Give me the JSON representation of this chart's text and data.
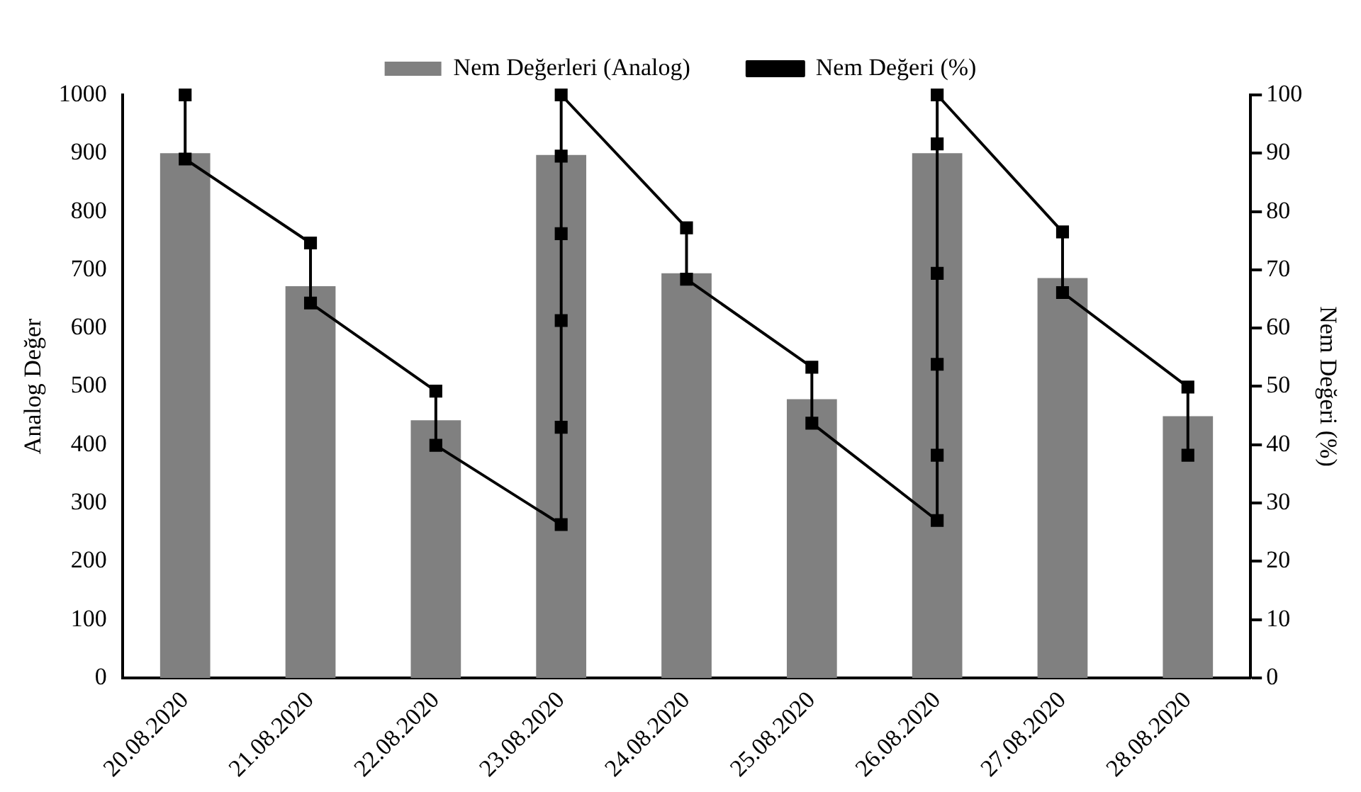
{
  "chart_data": {
    "type": "bar",
    "categories": [
      "20.08.2020",
      "21.08.2020",
      "22.08.2020",
      "23.08.2020",
      "24.08.2020",
      "25.08.2020",
      "26.08.2020",
      "27.08.2020",
      "28.08.2020"
    ],
    "ylabel": "Analog Değer",
    "y2label": "Nem Değeri (%)",
    "series": [
      {
        "name": "Nem Değerleri (Analog)",
        "color": "#808080",
        "values": [
          900,
          672,
          442,
          897,
          694,
          478,
          900,
          686,
          449
        ]
      },
      {
        "name": "Nem Değeri (%)",
        "type": "line",
        "axis": "y2",
        "color": "#000000",
        "marker": "square",
        "line_style": "solid",
        "x": [
          "20.08.2020",
          "20.08.2020",
          "21.08.2020",
          "21.08.2020",
          "22.08.2020",
          "22.08.2020",
          "23.08.2020",
          "23.08.2020",
          "23.08.2020",
          "23.08.2020",
          "23.08.2020",
          "23.08.2020",
          "24.08.2020",
          "24.08.2020",
          "25.08.2020",
          "25.08.2020",
          "26.08.2020",
          "26.08.2020",
          "26.08.2020",
          "26.08.2020",
          "26.08.2020",
          "26.08.2020",
          "27.08.2020",
          "27.08.2020",
          "28.08.2020",
          "28.08.2020"
        ],
        "values": [
          100,
          89,
          74.6,
          64.3,
          49.2,
          39.9,
          26.3,
          43,
          61.3,
          76.2,
          89.5,
          100,
          77.2,
          68.4,
          53.3,
          43.7,
          27,
          38.2,
          53.8,
          69.4,
          91.6,
          100,
          76.5,
          66.1,
          49.9,
          38.2
        ]
      }
    ],
    "ylim": [
      0,
      1000
    ],
    "yticks": [
      0,
      100,
      200,
      300,
      400,
      500,
      600,
      700,
      800,
      900,
      1000
    ],
    "y2lim": [
      0,
      100
    ],
    "y2ticks": [
      0,
      10,
      20,
      30,
      40,
      50,
      60,
      70,
      80,
      90,
      100
    ],
    "grid": false,
    "legend": "top"
  }
}
